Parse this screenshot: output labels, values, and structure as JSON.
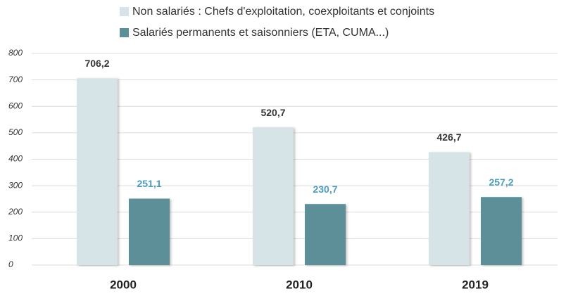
{
  "chart_data": {
    "type": "bar",
    "categories": [
      "2000",
      "2010",
      "2019"
    ],
    "series": [
      {
        "name": "Non salariés : Chefs d'exploitation, coexploitants et conjoints",
        "color": "#d6e4e7",
        "label_color": "#333333",
        "values": [
          706.2,
          520.7,
          426.7
        ],
        "value_labels": [
          "706,2",
          "520,7",
          "426,7"
        ]
      },
      {
        "name": "Salariés permanents et saisonniers (ETA, CUMA...)",
        "color": "#5d8f99",
        "label_color": "#4a9cc0",
        "values": [
          251.1,
          230.7,
          257.2
        ],
        "value_labels": [
          "251,1",
          "230,7",
          "257,2"
        ]
      }
    ],
    "ylim": [
      0,
      800
    ],
    "yticks": [
      0,
      100,
      200,
      300,
      400,
      500,
      600,
      700,
      800
    ],
    "grid": true
  }
}
